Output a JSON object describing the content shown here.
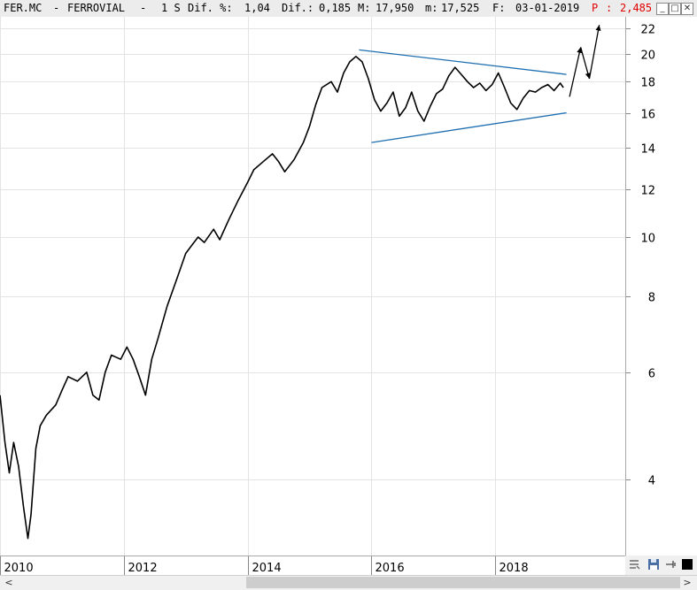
{
  "header": {
    "symbol": "FER.MC",
    "sep1": "-",
    "name": "FERROVIAL",
    "sep2": "-",
    "period": "1 S",
    "dif_pct_label": "Dif. %:",
    "dif_pct_value": "1,04",
    "dif_label": "Dif.:",
    "dif_value": "0,185",
    "max_label": "M:",
    "max_value": "17,950",
    "min_label": "m:",
    "min_value": "17,525",
    "date_label": "F:",
    "date_value": "03-01-2019",
    "p_label": "P",
    "p_sep": ":",
    "p_value": "2,485",
    "colors": {
      "text": "#000000",
      "price": "#e00000"
    }
  },
  "window_controls": {
    "minimize": "_",
    "maximize": "□",
    "close": "✕"
  },
  "scrollbar": {
    "left_arrow": "<",
    "right_arrow": ">"
  },
  "chart_data": {
    "type": "line",
    "yscale": "log",
    "ylim": [
      3.0,
      23.0
    ],
    "xlim": [
      2010.0,
      2020.1
    ],
    "yticks": [
      {
        "v": 4,
        "label": "4"
      },
      {
        "v": 6,
        "label": "6"
      },
      {
        "v": 8,
        "label": "8"
      },
      {
        "v": 10,
        "label": "10"
      },
      {
        "v": 12,
        "label": "12"
      },
      {
        "v": 14,
        "label": "14"
      },
      {
        "v": 16,
        "label": "16"
      },
      {
        "v": 18,
        "label": "18"
      },
      {
        "v": 20,
        "label": "20"
      },
      {
        "v": 22,
        "label": "22"
      }
    ],
    "xticks": [
      {
        "v": 2010,
        "label": "2010"
      },
      {
        "v": 2012,
        "label": "2012"
      },
      {
        "v": 2014,
        "label": "2014"
      },
      {
        "v": 2016,
        "label": "2016"
      },
      {
        "v": 2018,
        "label": "2018"
      }
    ],
    "grid": true,
    "series": [
      {
        "color": "#000000",
        "points": [
          [
            2010.0,
            5.5
          ],
          [
            2010.08,
            4.6
          ],
          [
            2010.15,
            4.1
          ],
          [
            2010.22,
            4.6
          ],
          [
            2010.3,
            4.2
          ],
          [
            2010.38,
            3.6
          ],
          [
            2010.45,
            3.2
          ],
          [
            2010.5,
            3.5
          ],
          [
            2010.58,
            4.5
          ],
          [
            2010.65,
            4.9
          ],
          [
            2010.75,
            5.1
          ],
          [
            2010.9,
            5.3
          ],
          [
            2011.0,
            5.6
          ],
          [
            2011.1,
            5.9
          ],
          [
            2011.25,
            5.8
          ],
          [
            2011.4,
            6.0
          ],
          [
            2011.5,
            5.5
          ],
          [
            2011.6,
            5.4
          ],
          [
            2011.7,
            6.0
          ],
          [
            2011.8,
            6.4
          ],
          [
            2011.95,
            6.3
          ],
          [
            2012.05,
            6.6
          ],
          [
            2012.15,
            6.3
          ],
          [
            2012.25,
            5.9
          ],
          [
            2012.35,
            5.5
          ],
          [
            2012.45,
            6.3
          ],
          [
            2012.55,
            6.8
          ],
          [
            2012.7,
            7.7
          ],
          [
            2012.85,
            8.5
          ],
          [
            2013.0,
            9.4
          ],
          [
            2013.1,
            9.7
          ],
          [
            2013.2,
            10.0
          ],
          [
            2013.3,
            9.8
          ],
          [
            2013.45,
            10.3
          ],
          [
            2013.55,
            9.9
          ],
          [
            2013.7,
            10.7
          ],
          [
            2013.85,
            11.5
          ],
          [
            2014.0,
            12.3
          ],
          [
            2014.1,
            12.9
          ],
          [
            2014.25,
            13.3
          ],
          [
            2014.4,
            13.7
          ],
          [
            2014.5,
            13.3
          ],
          [
            2014.6,
            12.8
          ],
          [
            2014.75,
            13.4
          ],
          [
            2014.9,
            14.3
          ],
          [
            2015.0,
            15.2
          ],
          [
            2015.1,
            16.5
          ],
          [
            2015.2,
            17.6
          ],
          [
            2015.35,
            18.0
          ],
          [
            2015.45,
            17.3
          ],
          [
            2015.55,
            18.6
          ],
          [
            2015.65,
            19.4
          ],
          [
            2015.75,
            19.8
          ],
          [
            2015.85,
            19.4
          ],
          [
            2015.95,
            18.2
          ],
          [
            2016.05,
            16.8
          ],
          [
            2016.15,
            16.1
          ],
          [
            2016.25,
            16.6
          ],
          [
            2016.35,
            17.3
          ],
          [
            2016.45,
            15.8
          ],
          [
            2016.55,
            16.3
          ],
          [
            2016.65,
            17.3
          ],
          [
            2016.75,
            16.1
          ],
          [
            2016.85,
            15.5
          ],
          [
            2016.95,
            16.4
          ],
          [
            2017.05,
            17.2
          ],
          [
            2017.15,
            17.5
          ],
          [
            2017.25,
            18.4
          ],
          [
            2017.35,
            19.0
          ],
          [
            2017.45,
            18.5
          ],
          [
            2017.55,
            18.0
          ],
          [
            2017.65,
            17.6
          ],
          [
            2017.75,
            17.9
          ],
          [
            2017.85,
            17.4
          ],
          [
            2017.95,
            17.8
          ],
          [
            2018.05,
            18.6
          ],
          [
            2018.15,
            17.6
          ],
          [
            2018.25,
            16.6
          ],
          [
            2018.35,
            16.2
          ],
          [
            2018.45,
            16.9
          ],
          [
            2018.55,
            17.4
          ],
          [
            2018.65,
            17.3
          ],
          [
            2018.75,
            17.6
          ],
          [
            2018.85,
            17.8
          ],
          [
            2018.95,
            17.4
          ],
          [
            2019.05,
            17.9
          ],
          [
            2019.1,
            17.6
          ]
        ]
      }
    ],
    "trendlines": [
      {
        "color": "#1f6fb0",
        "points": [
          [
            2015.8,
            20.3
          ],
          [
            2019.15,
            18.5
          ]
        ]
      },
      {
        "color": "#1f6fb0",
        "points": [
          [
            2016.0,
            14.3
          ],
          [
            2019.15,
            16.0
          ]
        ]
      }
    ],
    "projection": {
      "color": "#000000",
      "points": [
        [
          2019.2,
          17.0
        ],
        [
          2019.38,
          20.5
        ],
        [
          2019.52,
          18.2
        ],
        [
          2019.68,
          22.3
        ]
      ]
    }
  }
}
